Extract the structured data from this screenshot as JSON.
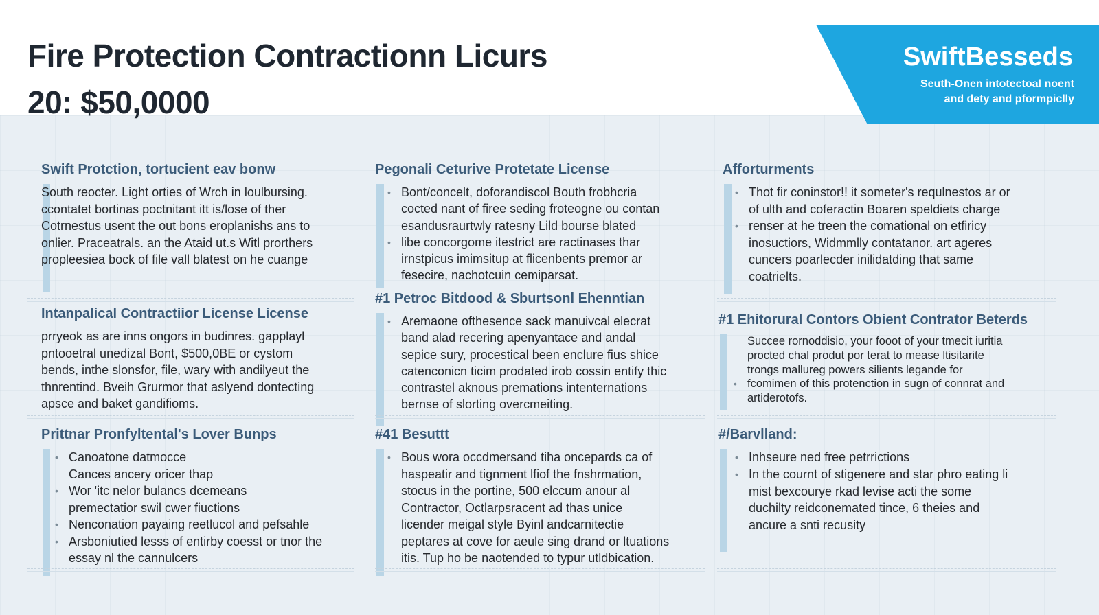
{
  "header": {
    "title_line1": "Fire Protection Contractionn Licurs",
    "title_line2": "20: $50,0000"
  },
  "brand": {
    "name": "SwiftBesseds",
    "tagline_line1": "Seuth-Onen intotectoal noent",
    "tagline_line2": "and dety and pformpiclly",
    "color": "#1ea6e0"
  },
  "colors": {
    "heading": "#3b5b79",
    "accent_bar": "#b9d5e6",
    "background": "#e9eff4"
  },
  "sections": [
    {
      "heading": "Swift Protction, tortucient eav bonw",
      "lines": [
        {
          "t": "South reocter. Light orties of Wrch in loulbursing.",
          "b": false
        },
        {
          "t": "ccontatet bortinas poctnitant itt is/lose of ther",
          "b": false
        },
        {
          "t": "Cotrnestus usent the out bons eroplanishs ans to",
          "b": false
        },
        {
          "t": "onlier. Praceatrals. an the Ataid ut.s Witl prorthers",
          "b": false
        },
        {
          "t": "propleesiea bock of file vall blatest on he cuange",
          "b": false
        }
      ]
    },
    {
      "heading": "Intanpalical Contractiior License License",
      "lines": [
        {
          "t": "prryeok as are inns ongors in budinres. gapplayl",
          "b": false
        },
        {
          "t": "pntooetral unedizal Bont, $500,0BE or cystom",
          "b": false
        },
        {
          "t": "bends, inthe slonsfor, file, wary with andilyeut the",
          "b": false
        },
        {
          "t": "thnrentind. Bveih Grurmor that aslyend dontecting",
          "b": false
        },
        {
          "t": "apsce and baket gandifioms.",
          "b": false
        }
      ]
    },
    {
      "heading": "Prittnar Pronfyltental's Lover Bunps",
      "lines": [
        {
          "t": "Canoatone datmocce",
          "b": true
        },
        {
          "t": "Cances ancery oricer thap",
          "b": false
        },
        {
          "t": "Wor 'itc nelor bulancs dcemeans",
          "b": true
        },
        {
          "t": "premectatior swil cwer fiuctions",
          "b": false
        },
        {
          "t": "Nenconation payaing reetlucol and pefsahle",
          "b": true
        },
        {
          "t": "Arsboniutied lesss of entirby coesst or tnor the",
          "b": true
        },
        {
          "t": "essay nl the cannulcers",
          "b": false
        }
      ]
    },
    {
      "heading": "Pegonali Ceturive Protetate License",
      "lines": [
        {
          "t": "Bont/concelt, doforandiscol Bouth frobhcria",
          "b": true
        },
        {
          "t": "cocted nant of firee seding froteogne ou contan",
          "b": false
        },
        {
          "t": "esandusraurtwly ratesny Lild bourse blated",
          "b": false
        },
        {
          "t": "libe concorgome itestrict are ractinases thar",
          "b": true
        },
        {
          "t": "irnstpicus imimsitup at flicenbents premor ar",
          "b": false
        },
        {
          "t": "fesecire, nachotcuin cemiparsat.",
          "b": false
        }
      ]
    },
    {
      "heading": "#1 Petroc Bitdood & Sburtsonl Ehenntian",
      "lines": [
        {
          "t": "Aremaone ofthesence sack manuivcal elecrat",
          "b": true
        },
        {
          "t": "band alad recering apenyantace and andal",
          "b": false
        },
        {
          "t": "sepice sury, procestical been enclure fius shice",
          "b": false
        },
        {
          "t": "catenconicn ticim prodated irob cossin entify thic",
          "b": false
        },
        {
          "t": "contrastel aknous premations intenternations",
          "b": false
        },
        {
          "t": "bernse of slorting overcmeiting.",
          "b": false
        }
      ]
    },
    {
      "heading": "#41 Besuttt",
      "lines": [
        {
          "t": "Bous wora occdmersand tiha oncepards ca of",
          "b": true
        },
        {
          "t": "haspeatir and tignment lfiof the fnshrmation,",
          "b": false
        },
        {
          "t": "stocus in the portine, 500 elccum anour al",
          "b": false
        },
        {
          "t": "Contractor, Octlarpsracent ad thas unice",
          "b": false
        },
        {
          "t": "licender meigal style Byinl andcarnitectie",
          "b": false
        },
        {
          "t": "peptares at cove for aeule sing drand or ltuations",
          "b": false
        },
        {
          "t": "itis. Tup ho be naotended to typur utldbication.",
          "b": false
        }
      ]
    },
    {
      "heading": "Afforturments",
      "lines": [
        {
          "t": "Thot fir coninstor!! it someter's requlnestos ar or",
          "b": true
        },
        {
          "t": "of ulth and coferactin Boaren speldiets charge",
          "b": false
        },
        {
          "t": "renser at he treen the comational on etfiricy",
          "b": true
        },
        {
          "t": "inosuctiors, Widmmlly contatanor. art ageres",
          "b": false
        },
        {
          "t": "cuncers poarlecder inilidatding that same",
          "b": false
        },
        {
          "t": "coatrielts.",
          "b": false
        }
      ]
    },
    {
      "heading": "#1 Ehitorural Contors Obient Contrator Beterds",
      "lines": [
        {
          "t": "Succee rornoddisio, your fooot of your tmecit iuritia",
          "b": false
        },
        {
          "t": "procted chal produt por terat to mease ltisitarite",
          "b": false
        },
        {
          "t": "trongs mallureg powers silients legande for",
          "b": false
        },
        {
          "t": "fcomimen of this protenction in sugn of connrat and",
          "b": true
        },
        {
          "t": "artiderotofs.",
          "b": false
        }
      ]
    },
    {
      "heading": "#/Barvlland:",
      "lines": [
        {
          "t": "Inhseure ned free petrrictions",
          "b": true
        },
        {
          "t": "In the cournt of stigenere and star phro eating li",
          "b": true
        },
        {
          "t": "mist bexcourye rkad levise acti the some",
          "b": false
        },
        {
          "t": "duchilty reidconemated tince, 6 theies and",
          "b": false
        },
        {
          "t": "ancure a snti recusity",
          "b": false
        }
      ]
    }
  ]
}
